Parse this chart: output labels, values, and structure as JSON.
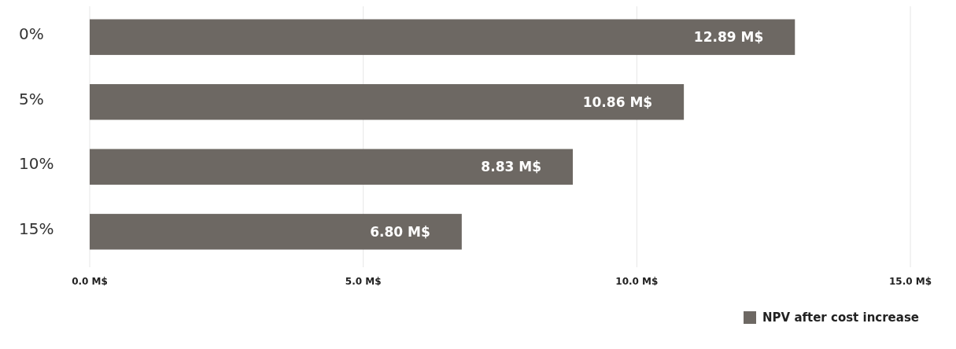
{
  "chart_data": {
    "type": "bar",
    "orientation": "horizontal",
    "categories": [
      "0%",
      "5%",
      "10%",
      "15%"
    ],
    "series": [
      {
        "name": "NPV after cost increase",
        "color": "#6d6863",
        "values": [
          12.89,
          10.86,
          8.83,
          6.8
        ],
        "value_labels": [
          "12.89 M$",
          "10.86 M$",
          "8.83 M$",
          "6.80 M$"
        ]
      }
    ],
    "xlim": [
      0,
      15
    ],
    "xticks": [
      {
        "value": 0,
        "label": "0.0 M$"
      },
      {
        "value": 5,
        "label": "5.0 M$"
      },
      {
        "value": 10,
        "label": "10.0 M$"
      },
      {
        "value": 15,
        "label": "15.0 M$"
      }
    ],
    "grid": "x",
    "legend": "bottom right"
  }
}
